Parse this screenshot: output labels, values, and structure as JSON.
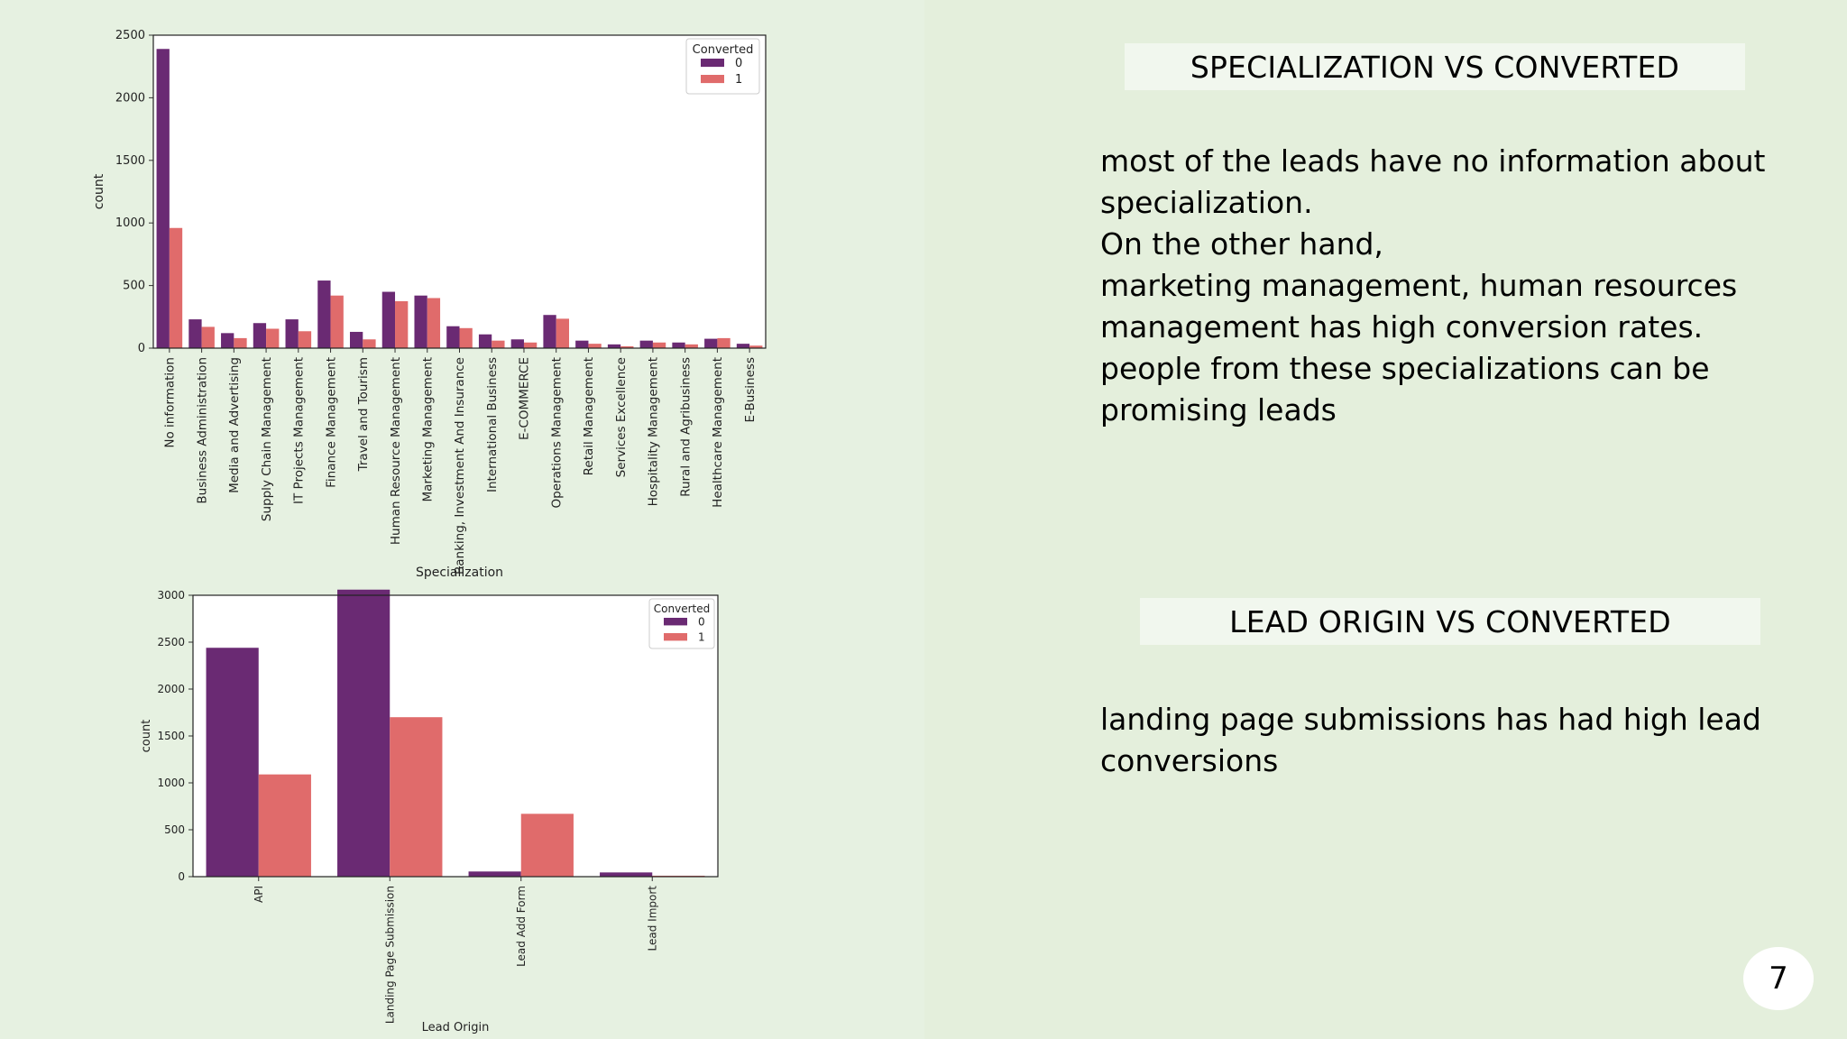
{
  "slide": {
    "page_number": "7",
    "section1": {
      "heading": "SPECIALIZATION VS CONVERTED",
      "text": "most of the leads have no information about\nspecialization.\nOn the other hand,\nmarketing management, human resources\nmanagement has high conversion rates.\npeople from these specializations can be\npromising leads"
    },
    "section2": {
      "heading": "LEAD ORIGIN VS CONVERTED",
      "text": "landing page submissions has had high lead\nconversions"
    }
  },
  "colors": {
    "class0": "#6a2a73",
    "class1": "#e06b6b"
  },
  "chart_data": [
    {
      "type": "bar",
      "xlabel": "Specialization",
      "ylabel": "count",
      "ylim": [
        0,
        2500
      ],
      "yticks": [
        0,
        500,
        1000,
        1500,
        2000,
        2500
      ],
      "legend": {
        "title": "Converted",
        "placement": "top-right"
      },
      "categories": [
        "No information",
        "Business Administration",
        "Media and Advertising",
        "Supply Chain Management",
        "IT Projects Management",
        "Finance Management",
        "Travel and Tourism",
        "Human Resource Management",
        "Marketing Management",
        "Banking, Investment And Insurance",
        "International Business",
        "E-COMMERCE",
        "Operations Management",
        "Retail Management",
        "Services Excellence",
        "Hospitality Management",
        "Rural and Agribusiness",
        "Healthcare Management",
        "E-Business"
      ],
      "series": [
        {
          "name": "0",
          "values": [
            2390,
            230,
            120,
            200,
            230,
            540,
            130,
            450,
            420,
            175,
            110,
            70,
            265,
            60,
            30,
            60,
            45,
            75,
            35
          ]
        },
        {
          "name": "1",
          "values": [
            960,
            170,
            80,
            155,
            135,
            420,
            70,
            375,
            400,
            160,
            60,
            45,
            235,
            35,
            15,
            45,
            30,
            80,
            20
          ]
        }
      ]
    },
    {
      "type": "bar",
      "xlabel": "Lead Origin",
      "ylabel": "count",
      "ylim": [
        0,
        3000
      ],
      "yticks": [
        0,
        500,
        1000,
        1500,
        2000,
        2500,
        3000
      ],
      "legend": {
        "title": "Converted",
        "placement": "top-right"
      },
      "categories": [
        "API",
        "Landing Page Submission",
        "Lead Add Form",
        "Lead Import"
      ],
      "series": [
        {
          "name": "0",
          "values": [
            2440,
            3060,
            55,
            45
          ]
        },
        {
          "name": "1",
          "values": [
            1090,
            1700,
            670,
            10
          ]
        }
      ]
    }
  ]
}
